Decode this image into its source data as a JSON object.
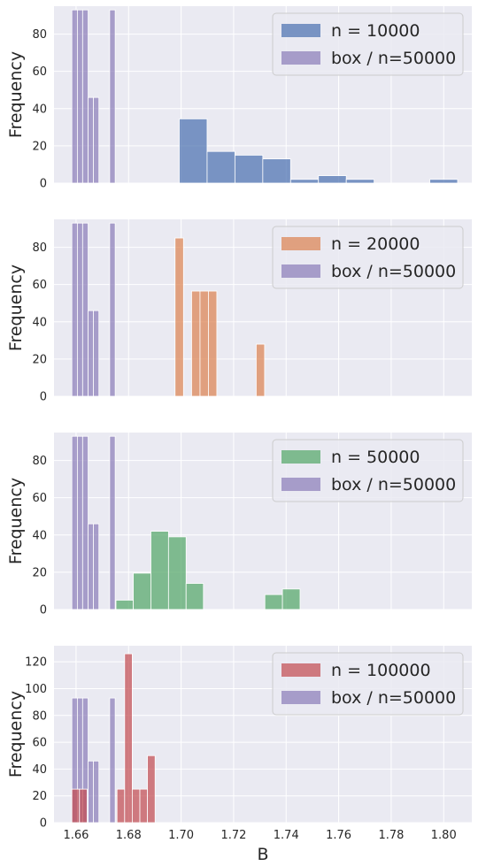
{
  "chart_data": [
    {
      "type": "bar",
      "xlim": [
        1.6516,
        1.8107
      ],
      "ylim": [
        0,
        95
      ],
      "yticks": [
        0,
        20,
        40,
        60,
        80
      ],
      "ylabel": "Frequency",
      "xlabel": "",
      "grid": true,
      "legend": "top-right",
      "series": [
        {
          "name": "n = 10000",
          "color": "#4c72b0",
          "bins": [
            [
              1.6993,
              1.7099,
              34.5
            ],
            [
              1.7099,
              1.7205,
              17
            ],
            [
              1.7205,
              1.7311,
              15
            ],
            [
              1.7311,
              1.7417,
              13
            ],
            [
              1.7417,
              1.7523,
              2
            ],
            [
              1.7523,
              1.7629,
              4
            ],
            [
              1.7629,
              1.7735,
              2
            ],
            [
              1.7947,
              1.8053,
              2
            ]
          ]
        },
        {
          "name": "box / n=50000",
          "color": "#8172b2",
          "bins": [
            [
              1.6584,
              1.6605,
              93
            ],
            [
              1.6605,
              1.6625,
              93
            ],
            [
              1.6625,
              1.6646,
              93
            ],
            [
              1.6646,
              1.6666,
              46
            ],
            [
              1.6666,
              1.6687,
              46
            ],
            [
              1.6728,
              1.6749,
              93
            ]
          ]
        }
      ]
    },
    {
      "type": "bar",
      "xlim": [
        1.6516,
        1.8107
      ],
      "ylim": [
        0,
        95
      ],
      "yticks": [
        0,
        20,
        40,
        60,
        80
      ],
      "ylabel": "Frequency",
      "xlabel": "",
      "grid": true,
      "legend": "top-right",
      "series": [
        {
          "name": "n = 20000",
          "color": "#dd8452",
          "bins": [
            [
              1.6977,
              1.7009,
              85
            ],
            [
              1.704,
              1.7072,
              56.5
            ],
            [
              1.7072,
              1.7104,
              56.5
            ],
            [
              1.7104,
              1.7136,
              56.5
            ],
            [
              1.7286,
              1.7318,
              28
            ]
          ]
        },
        {
          "name": "box / n=50000",
          "color": "#8172b2",
          "bins": [
            [
              1.6584,
              1.6605,
              93
            ],
            [
              1.6605,
              1.6625,
              93
            ],
            [
              1.6625,
              1.6646,
              93
            ],
            [
              1.6646,
              1.6666,
              46
            ],
            [
              1.6666,
              1.6687,
              46
            ],
            [
              1.6728,
              1.6749,
              93
            ]
          ]
        }
      ]
    },
    {
      "type": "bar",
      "xlim": [
        1.6516,
        1.8107
      ],
      "ylim": [
        0,
        95
      ],
      "yticks": [
        0,
        20,
        40,
        60,
        80
      ],
      "ylabel": "Frequency",
      "xlabel": "",
      "grid": true,
      "legend": "top-right",
      "series": [
        {
          "name": "n = 50000",
          "color": "#55a868",
          "bins": [
            [
              1.6752,
              1.6818,
              5
            ],
            [
              1.6818,
              1.6885,
              19.5
            ],
            [
              1.6885,
              1.6952,
              42
            ],
            [
              1.6952,
              1.7019,
              39
            ],
            [
              1.7019,
              1.7085,
              14
            ],
            [
              1.7319,
              1.7386,
              8
            ],
            [
              1.7386,
              1.7453,
              11
            ]
          ]
        },
        {
          "name": "box / n=50000",
          "color": "#8172b2",
          "bins": [
            [
              1.6584,
              1.6605,
              93
            ],
            [
              1.6605,
              1.6625,
              93
            ],
            [
              1.6625,
              1.6646,
              93
            ],
            [
              1.6646,
              1.6666,
              46
            ],
            [
              1.6666,
              1.6687,
              46
            ],
            [
              1.6728,
              1.6749,
              93
            ]
          ]
        }
      ]
    },
    {
      "type": "bar",
      "xlim": [
        1.6516,
        1.8107
      ],
      "ylim": [
        0,
        132
      ],
      "yticks": [
        0,
        20,
        40,
        60,
        80,
        100,
        120
      ],
      "xticks": [
        1.66,
        1.68,
        1.7,
        1.72,
        1.74,
        1.76,
        1.78,
        1.8
      ],
      "xticklabels": [
        "1.66",
        "1.68",
        "1.70",
        "1.72",
        "1.74",
        "1.76",
        "1.78",
        "1.80"
      ],
      "ylabel": "Frequency",
      "xlabel": "B",
      "grid": true,
      "legend": "top-right",
      "series": [
        {
          "name": "n = 100000",
          "color": "#c44e52",
          "bins": [
            [
              1.6584,
              1.6613,
              25
            ],
            [
              1.6613,
              1.6642,
              25
            ],
            [
              1.6756,
              1.6785,
              25
            ],
            [
              1.6785,
              1.6814,
              126
            ],
            [
              1.6814,
              1.6843,
              25
            ],
            [
              1.6843,
              1.6872,
              25
            ],
            [
              1.6872,
              1.6901,
              50
            ]
          ]
        },
        {
          "name": "box / n=50000",
          "color": "#8172b2",
          "bins": [
            [
              1.6584,
              1.6605,
              93
            ],
            [
              1.6605,
              1.6625,
              93
            ],
            [
              1.6625,
              1.6646,
              93
            ],
            [
              1.6646,
              1.6666,
              46
            ],
            [
              1.6666,
              1.6687,
              46
            ],
            [
              1.6728,
              1.6749,
              93
            ]
          ]
        }
      ]
    }
  ]
}
